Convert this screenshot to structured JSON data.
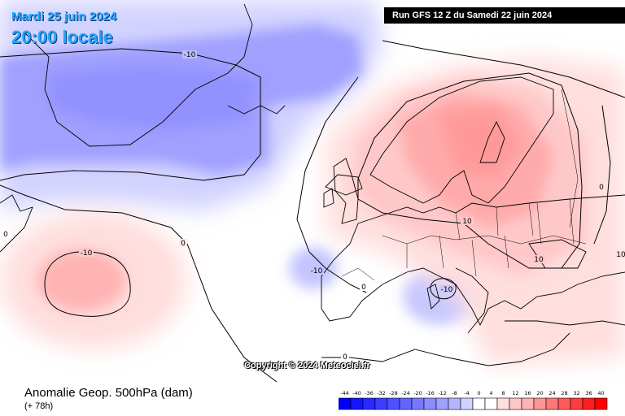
{
  "header": {
    "date": "Mardi 25 juin 2024",
    "time": "20:00 locale",
    "run": "Run GFS 12 Z du Samedi 22 juin 2024"
  },
  "map": {
    "copyright": "Copyright © 2024 Meteociel.fr",
    "contour_labels": [
      "-10",
      "-10",
      "-10",
      "-10",
      "0",
      "0",
      "0",
      "0",
      "0",
      "10",
      "10",
      "10"
    ]
  },
  "footer": {
    "title": "Anomalie Geop. 500hPa (dam)",
    "subtitle": "(+ 78h)"
  },
  "legend": {
    "values": [
      "-44",
      "-40",
      "-36",
      "-32",
      "-28",
      "-24",
      "-20",
      "-16",
      "-12",
      "-8",
      "-4",
      "0",
      "4",
      "8",
      "12",
      "16",
      "20",
      "24",
      "28",
      "32",
      "36",
      "40"
    ],
    "colors": [
      "#0000ff",
      "#1414ff",
      "#2828ff",
      "#3c3cff",
      "#5050ff",
      "#6464ff",
      "#7878ff",
      "#8c8cff",
      "#a0a0ff",
      "#b4b4ff",
      "#d2d2ff",
      "#ffffff",
      "#ffffff",
      "#ffdede",
      "#ffc8c8",
      "#ffb4b4",
      "#ff9696",
      "#ff7878",
      "#ff5a5a",
      "#ff3c3c",
      "#ff1e1e",
      "#ff0000"
    ]
  }
}
